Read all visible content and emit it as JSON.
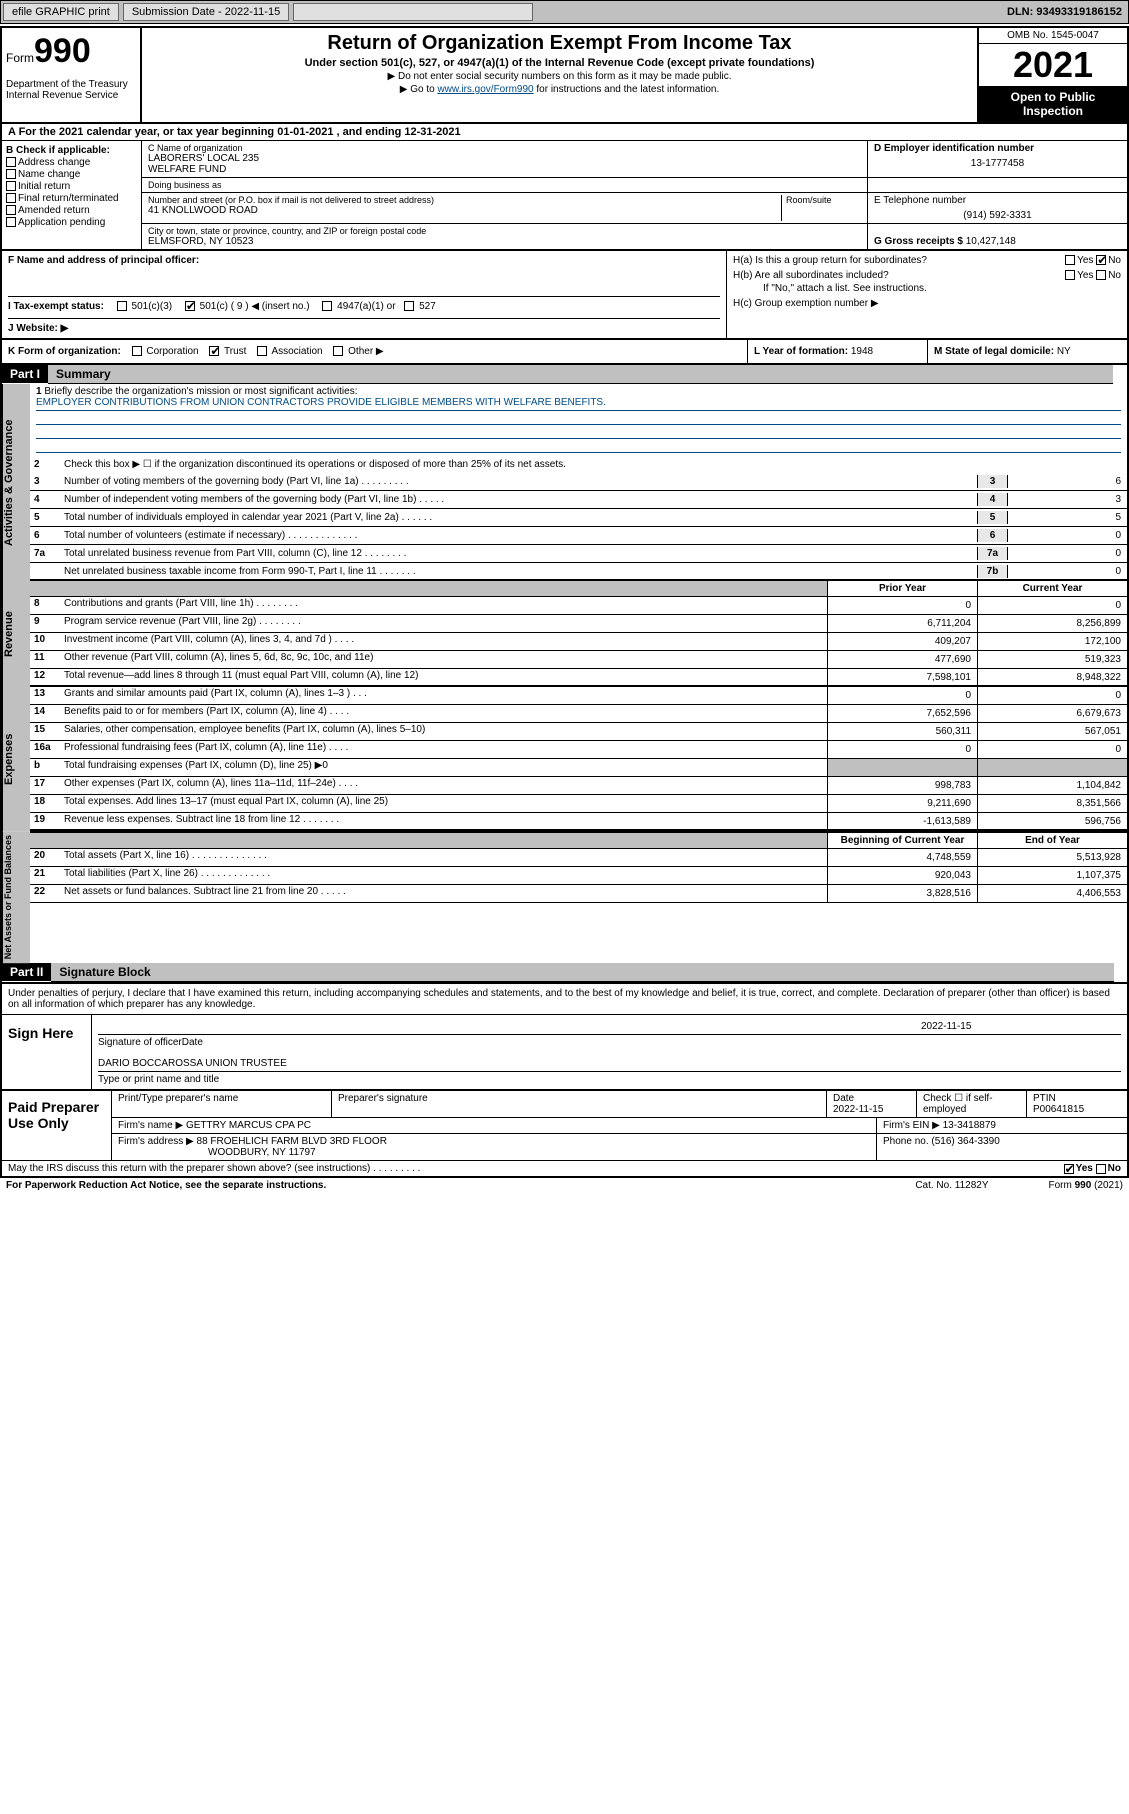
{
  "topbar": {
    "efile": "efile GRAPHIC print",
    "submission_label": "Submission Date - 2022-11-15",
    "dln": "DLN: 93493319186152"
  },
  "header": {
    "form_label": "Form",
    "form_number": "990",
    "dept": "Department of the Treasury\nInternal Revenue Service",
    "title": "Return of Organization Exempt From Income Tax",
    "subtitle": "Under section 501(c), 527, or 4947(a)(1) of the Internal Revenue Code (except private foundations)",
    "note1": "▶ Do not enter social security numbers on this form as it may be made public.",
    "note2_pre": "▶ Go to ",
    "note2_link": "www.irs.gov/Form990",
    "note2_post": " for instructions and the latest information.",
    "omb": "OMB No. 1545-0047",
    "year": "2021",
    "inspect": "Open to Public Inspection"
  },
  "row_a": {
    "text_pre": "A For the 2021 calendar year, or tax year beginning ",
    "begin": "01-01-2021",
    "mid": " , and ending ",
    "end": "12-31-2021"
  },
  "col_b": {
    "title": "B Check if applicable:",
    "items": [
      "Address change",
      "Name change",
      "Initial return",
      "Final return/terminated",
      "Amended return",
      "Application pending"
    ]
  },
  "org": {
    "name_label": "C Name of organization",
    "name": "LABORERS' LOCAL 235\nWELFARE FUND",
    "dba_label": "Doing business as",
    "dba": "",
    "addr_label": "Number and street (or P.O. box if mail is not delivered to street address)",
    "addr": "41 KNOLLWOOD ROAD",
    "room_label": "Room/suite",
    "city_label": "City or town, state or province, country, and ZIP or foreign postal code",
    "city": "ELMSFORD, NY  10523"
  },
  "right_col": {
    "ein_label": "D Employer identification number",
    "ein": "13-1777458",
    "phone_label": "E Telephone number",
    "phone": "(914) 592-3331",
    "gross_label": "G Gross receipts $ ",
    "gross": "10,427,148"
  },
  "fg": {
    "f_label": "F Name and address of principal officer:",
    "ha": "H(a)  Is this a group return for subordinates?",
    "hb": "H(b)  Are all subordinates included?",
    "hb_note": "If \"No,\" attach a list. See instructions.",
    "hc": "H(c)  Group exemption number ▶"
  },
  "row_i": {
    "label": "I  Tax-exempt status:",
    "c3": "501(c)(3)",
    "c_other": "501(c) ( 9 ) ◀ (insert no.)",
    "a1": "4947(a)(1) or",
    "s527": "527"
  },
  "row_j": {
    "label": "J  Website: ▶"
  },
  "row_k": {
    "label": "K Form of organization:",
    "opts": [
      "Corporation",
      "Trust",
      "Association",
      "Other ▶"
    ],
    "l_label": "L Year of formation: ",
    "l_val": "1948",
    "m_label": "M State of legal domicile: ",
    "m_val": "NY"
  },
  "part1": {
    "label": "Part I",
    "title": "Summary"
  },
  "vtabs": {
    "gov": "Activities & Governance",
    "rev": "Revenue",
    "exp": "Expenses",
    "net": "Net Assets or Fund Balances"
  },
  "gov_lines": {
    "l1_label": "Briefly describe the organization's mission or most significant activities:",
    "l1_text": "EMPLOYER CONTRIBUTIONS FROM UNION CONTRACTORS PROVIDE ELIGIBLE MEMBERS WITH WELFARE BENEFITS.",
    "l2": "Check this box ▶ ☐  if the organization discontinued its operations or disposed of more than 25% of its net assets.",
    "l3": "Number of voting members of the governing body (Part VI, line 1a)  .    .    .    .    .    .    .    .    .",
    "l3v": "6",
    "l4": "Number of independent voting members of the governing body (Part VI, line 1b)  .    .    .    .    .",
    "l4v": "3",
    "l5": "Total number of individuals employed in calendar year 2021 (Part V, line 2a)  .    .    .    .    .    .",
    "l5v": "5",
    "l6": "Total number of volunteers (estimate if necessary)  .    .    .    .    .    .    .    .    .    .    .    .    .",
    "l6v": "0",
    "l7a": "Total unrelated business revenue from Part VIII, column (C), line 12  .    .    .    .    .    .    .    .",
    "l7av": "0",
    "l7b": "Net unrelated business taxable income from Form 990-T, Part I, line 11  .    .    .    .    .    .    .",
    "l7bv": "0"
  },
  "col_hdrs": {
    "prior": "Prior Year",
    "current": "Current Year",
    "beg": "Beginning of Current Year",
    "end": "End of Year"
  },
  "rev_lines": [
    {
      "n": "8",
      "t": "Contributions and grants (Part VIII, line 1h)  .    .    .    .    .    .    .    .",
      "p": "0",
      "c": "0"
    },
    {
      "n": "9",
      "t": "Program service revenue (Part VIII, line 2g)  .    .    .    .    .    .    .    .",
      "p": "6,711,204",
      "c": "8,256,899"
    },
    {
      "n": "10",
      "t": "Investment income (Part VIII, column (A), lines 3, 4, and 7d )  .    .    .    .",
      "p": "409,207",
      "c": "172,100"
    },
    {
      "n": "11",
      "t": "Other revenue (Part VIII, column (A), lines 5, 6d, 8c, 9c, 10c, and 11e)",
      "p": "477,690",
      "c": "519,323"
    },
    {
      "n": "12",
      "t": "Total revenue—add lines 8 through 11 (must equal Part VIII, column (A), line 12)",
      "p": "7,598,101",
      "c": "8,948,322"
    }
  ],
  "exp_lines": [
    {
      "n": "13",
      "t": "Grants and similar amounts paid (Part IX, column (A), lines 1–3 )  .    .    .",
      "p": "0",
      "c": "0"
    },
    {
      "n": "14",
      "t": "Benefits paid to or for members (Part IX, column (A), line 4)  .    .    .    .",
      "p": "7,652,596",
      "c": "6,679,673"
    },
    {
      "n": "15",
      "t": "Salaries, other compensation, employee benefits (Part IX, column (A), lines 5–10)",
      "p": "560,311",
      "c": "567,051"
    },
    {
      "n": "16a",
      "t": "Professional fundraising fees (Part IX, column (A), line 11e)  .    .    .    .",
      "p": "0",
      "c": "0"
    },
    {
      "n": "b",
      "t": "Total fundraising expenses (Part IX, column (D), line 25) ▶0",
      "p": "",
      "c": "",
      "shade": true
    },
    {
      "n": "17",
      "t": "Other expenses (Part IX, column (A), lines 11a–11d, 11f–24e)  .    .    .    .",
      "p": "998,783",
      "c": "1,104,842"
    },
    {
      "n": "18",
      "t": "Total expenses. Add lines 13–17 (must equal Part IX, column (A), line 25)",
      "p": "9,211,690",
      "c": "8,351,566"
    },
    {
      "n": "19",
      "t": "Revenue less expenses. Subtract line 18 from line 12  .    .    .    .    .    .    .",
      "p": "-1,613,589",
      "c": "596,756"
    }
  ],
  "net_lines": [
    {
      "n": "20",
      "t": "Total assets (Part X, line 16)  .    .    .    .    .    .    .    .    .    .    .    .    .    .",
      "p": "4,748,559",
      "c": "5,513,928"
    },
    {
      "n": "21",
      "t": "Total liabilities (Part X, line 26)  .    .    .    .    .    .    .    .    .    .    .    .    .",
      "p": "920,043",
      "c": "1,107,375"
    },
    {
      "n": "22",
      "t": "Net assets or fund balances. Subtract line 21 from line 20  .    .    .    .    .",
      "p": "3,828,516",
      "c": "4,406,553"
    }
  ],
  "part2": {
    "label": "Part II",
    "title": "Signature Block"
  },
  "sig": {
    "decl": "Under penalties of perjury, I declare that I have examined this return, including accompanying schedules and statements, and to the best of my knowledge and belief, it is true, correct, and complete. Declaration of preparer (other than officer) is based on all information of which preparer has any knowledge.",
    "sign_here": "Sign Here",
    "sig_officer": "Signature of officer",
    "date": "2022-11-15",
    "date_lbl": "Date",
    "name": "DARIO BOCCAROSSA UNION TRUSTEE",
    "name_lbl": "Type or print name and title"
  },
  "prep": {
    "label": "Paid Preparer Use Only",
    "h_name": "Print/Type preparer's name",
    "h_sig": "Preparer's signature",
    "h_date": "Date",
    "date": "2022-11-15",
    "h_check": "Check ☐ if self-employed",
    "h_ptin": "PTIN",
    "ptin": "P00641815",
    "firm_name_lbl": "Firm's name    ▶ ",
    "firm_name": "GETTRY MARCUS CPA PC",
    "firm_ein_lbl": "Firm's EIN ▶ ",
    "firm_ein": "13-3418879",
    "firm_addr_lbl": "Firm's address ▶ ",
    "firm_addr1": "88 FROEHLICH FARM BLVD 3RD FLOOR",
    "firm_addr2": "WOODBURY, NY  11797",
    "phone_lbl": "Phone no. ",
    "phone": "(516) 364-3390"
  },
  "footer": {
    "discuss": "May the IRS discuss this return with the preparer shown above? (see instructions)  .    .    .    .    .    .    .    .    .",
    "yes": "Yes",
    "no": "No",
    "pra": "For Paperwork Reduction Act Notice, see the separate instructions.",
    "cat": "Cat. No. 11282Y",
    "form": "Form 990 (2021)"
  },
  "colors": {
    "link": "#004b87",
    "shade": "#c0c0c0",
    "gray": "#e8e8e8"
  }
}
